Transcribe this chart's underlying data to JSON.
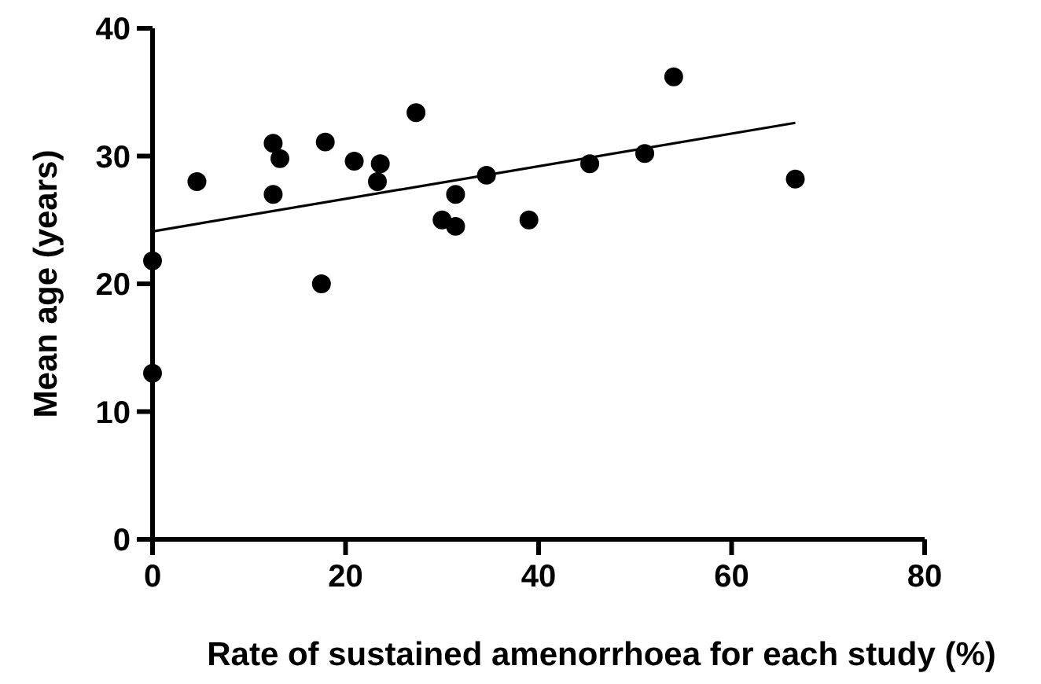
{
  "chart_data": {
    "type": "scatter",
    "xlabel": "Rate of sustained amenorrhoea for each study (%)",
    "ylabel": "Mean age (years)",
    "xlim": [
      0,
      80
    ],
    "ylim": [
      0,
      40
    ],
    "xticks": [
      0,
      20,
      40,
      60,
      80
    ],
    "yticks": [
      0,
      10,
      20,
      30,
      40
    ],
    "grid": false,
    "series": [
      {
        "marker": "circle",
        "color": "#000000",
        "x": [
          0,
          0,
          4.6,
          12.5,
          12.5,
          13.2,
          17.5,
          17.9,
          20.9,
          23.3,
          23.6,
          27.3,
          30.0,
          31.4,
          31.4,
          34.6,
          39,
          45.3,
          51,
          54,
          66.6
        ],
        "values": [
          21.8,
          13,
          28,
          31,
          27,
          29.8,
          20,
          31.1,
          29.6,
          28,
          29.4,
          33.4,
          25,
          27,
          24.5,
          28.5,
          25,
          29.4,
          30.2,
          36.2,
          28.2
        ]
      },
      {
        "type": "line",
        "color": "#000000",
        "x": [
          0,
          66.6
        ],
        "values": [
          24.1,
          32.6
        ]
      }
    ]
  }
}
